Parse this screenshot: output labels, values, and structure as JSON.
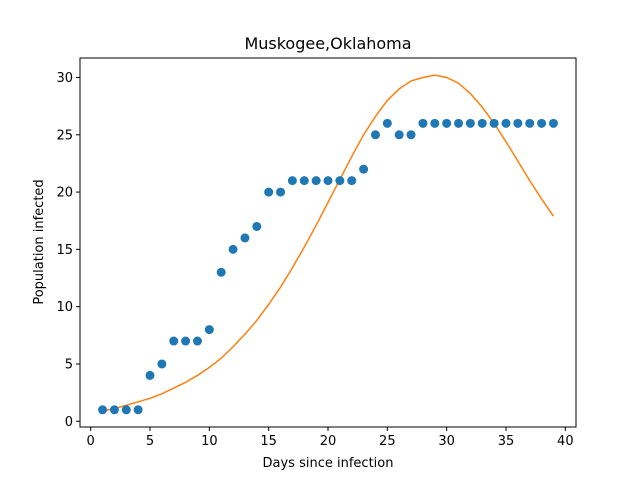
{
  "chart_data": {
    "type": "scatter",
    "title": "Muskogee,Oklahoma",
    "xlabel": "Days since infection",
    "ylabel": "Population infected",
    "xlim": [
      -0.9,
      40.9
    ],
    "ylim": [
      -0.5,
      31.7
    ],
    "xticks": [
      0,
      5,
      10,
      15,
      20,
      25,
      30,
      35,
      40
    ],
    "yticks": [
      0,
      5,
      10,
      15,
      20,
      25,
      30
    ],
    "grid": false,
    "series": [
      {
        "kind": "scatter",
        "color": "#1f77b4",
        "x": [
          1,
          2,
          3,
          4,
          5,
          6,
          7,
          8,
          9,
          10,
          11,
          12,
          13,
          14,
          15,
          16,
          17,
          18,
          19,
          20,
          21,
          22,
          23,
          24,
          25,
          26,
          27,
          28,
          29,
          30,
          31,
          32,
          33,
          34,
          35,
          36,
          37,
          38,
          39
        ],
        "y": [
          1,
          1,
          1,
          1,
          4,
          5,
          7,
          7,
          7,
          8,
          13,
          15,
          16,
          17,
          20,
          20,
          21,
          21,
          21,
          21,
          21,
          21,
          22,
          25,
          26,
          25,
          25,
          26,
          26,
          26,
          26,
          26,
          26,
          26,
          26,
          26,
          26,
          26,
          26
        ]
      },
      {
        "kind": "line",
        "color": "#ff7f0e",
        "x": [
          1,
          2,
          3,
          4,
          5,
          6,
          7,
          8,
          9,
          10,
          11,
          12,
          13,
          14,
          15,
          16,
          17,
          18,
          19,
          20,
          21,
          22,
          23,
          24,
          25,
          26,
          27,
          28,
          29,
          30,
          31,
          32,
          33,
          34,
          35,
          36,
          37,
          38,
          39
        ],
        "y": [
          0.9,
          1.1,
          1.4,
          1.7,
          2.0,
          2.4,
          2.9,
          3.4,
          4.0,
          4.7,
          5.5,
          6.5,
          7.6,
          8.8,
          10.2,
          11.7,
          13.4,
          15.2,
          17.1,
          19.1,
          21.1,
          23.1,
          25.0,
          26.6,
          28.0,
          29.0,
          29.7,
          30.0,
          30.2,
          30.0,
          29.5,
          28.6,
          27.4,
          26.0,
          24.4,
          22.7,
          21.0,
          19.4,
          17.9
        ]
      }
    ]
  }
}
